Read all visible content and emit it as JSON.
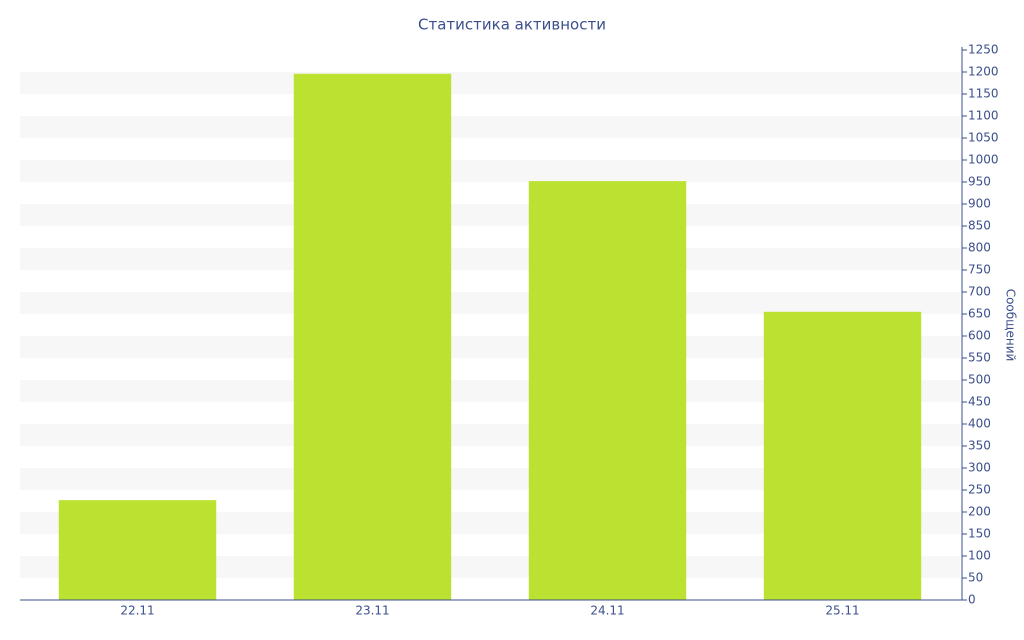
{
  "chart_data": {
    "type": "bar",
    "title": "Статистика активности",
    "y_label": "Сообщений",
    "categories": [
      "22.11",
      "23.11",
      "24.11",
      "25.11"
    ],
    "values": [
      227,
      1196,
      952,
      655
    ],
    "color": "#bce231",
    "ylim": [
      0,
      1250
    ],
    "yticks": [
      0,
      50,
      100,
      150,
      200,
      250,
      300,
      350,
      400,
      450,
      500,
      550,
      600,
      650,
      700,
      750,
      800,
      850,
      900,
      950,
      1000,
      1050,
      1100,
      1150,
      1200,
      1250
    ],
    "y_axis_side": "right",
    "grid": "bands"
  }
}
